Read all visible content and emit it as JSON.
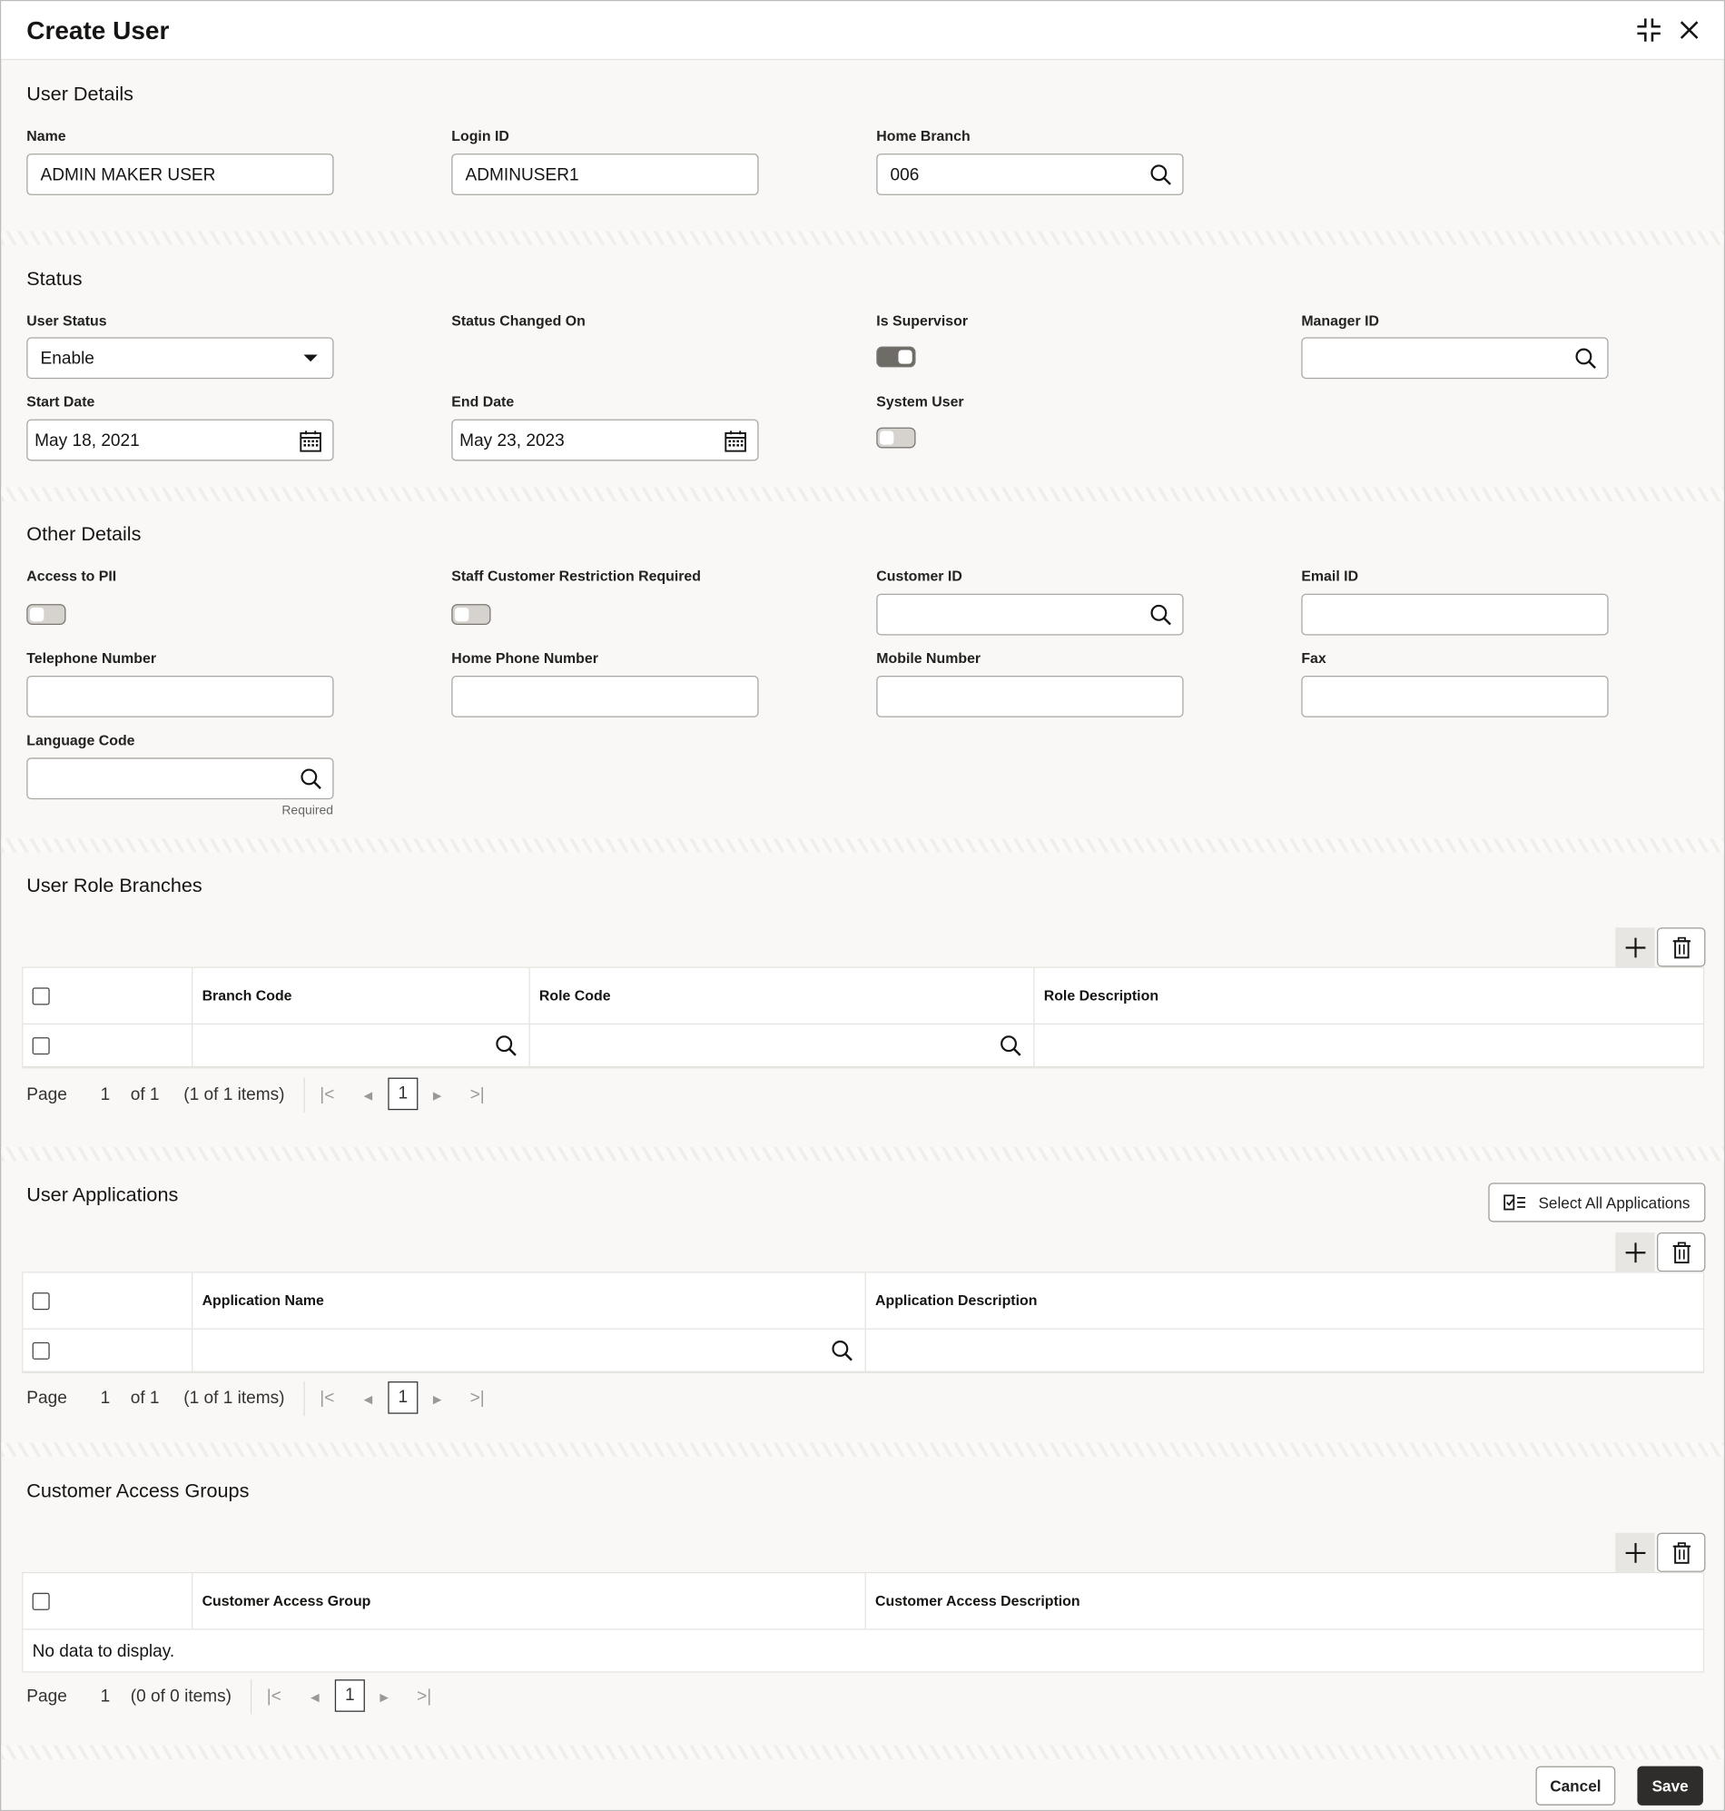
{
  "header": {
    "title": "Create User",
    "icons": [
      "compress-icon",
      "close-icon"
    ]
  },
  "user_details": {
    "title": "User Details",
    "name_label": "Name",
    "name_value": "ADMIN MAKER USER",
    "login_label": "Login ID",
    "login_value": "ADMINUSER1",
    "branch_label": "Home Branch",
    "branch_value": "006"
  },
  "status": {
    "title": "Status",
    "user_status_label": "User Status",
    "user_status_value": "Enable",
    "changed_on_label": "Status Changed On",
    "supervisor_label": "Is Supervisor",
    "supervisor_on": true,
    "manager_label": "Manager ID",
    "manager_value": "",
    "start_label": "Start Date",
    "start_value": "May 18, 2021",
    "end_label": "End Date",
    "end_value": "May 23, 2023",
    "system_label": "System User",
    "system_on": false
  },
  "other": {
    "title": "Other Details",
    "pii_label": "Access to PII",
    "pii_on": false,
    "staff_label": "Staff Customer Restriction Required",
    "staff_on": false,
    "customer_label": "Customer ID",
    "email_label": "Email ID",
    "tel_label": "Telephone Number",
    "home_phone_label": "Home Phone Number",
    "mobile_label": "Mobile Number",
    "fax_label": "Fax",
    "lang_label": "Language Code",
    "required": "Required"
  },
  "role_branches": {
    "title": "User Role Branches",
    "columns": [
      "Branch Code",
      "Role Code",
      "Role Description"
    ],
    "pager": {
      "page": "Page",
      "num": "1",
      "of": "of 1",
      "items": "(1 of 1 items)",
      "current": "1"
    }
  },
  "applications": {
    "title": "User Applications",
    "select_all": "Select All Applications",
    "columns": [
      "Application Name",
      "Application Description"
    ],
    "pager": {
      "page": "Page",
      "num": "1",
      "of": "of 1",
      "items": "(1 of 1 items)",
      "current": "1"
    }
  },
  "access_groups": {
    "title": "Customer Access Groups",
    "columns": [
      "Customer Access Group",
      "Customer Access Description"
    ],
    "empty": "No data to display.",
    "pager": {
      "page": "Page",
      "num": "1",
      "items": "(0 of 0 items)",
      "current": "1"
    }
  },
  "footer": {
    "cancel": "Cancel",
    "save": "Save"
  }
}
